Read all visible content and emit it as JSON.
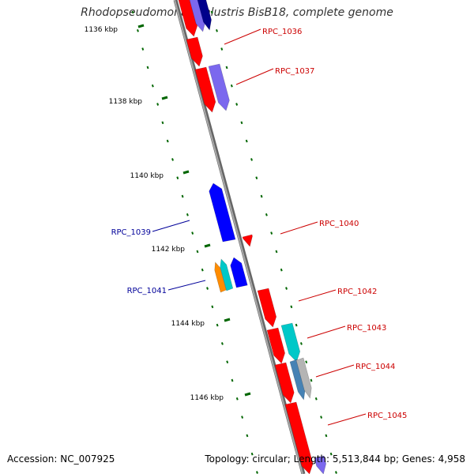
{
  "header": {
    "title": "Rhodopseudomonas palustris BisB18, complete genome"
  },
  "footer": {
    "accession": "Accession: NC_007925",
    "summary": "Topology: circular; Length: 5,513,844 bp; Genes: 4,958"
  },
  "colors": {
    "backbone": "#808080",
    "forward_label": "#cc0000",
    "reverse_label": "#000099",
    "tick": "#006600",
    "forward_gene": "#ff0000",
    "reverse_gene": "#0000ff",
    "purple_gene": "#7b68ee",
    "cyan_gene": "#00c8c8",
    "orange_gene": "#ff8c00",
    "gray_gene": "#b4b4b4",
    "steel_gene": "#4682b4"
  },
  "scale_labels": [
    "1136 kbp",
    "1138 kbp",
    "1140 kbp",
    "1142 kbp",
    "1144 kbp",
    "1146 kbp"
  ],
  "gene_labels": [
    {
      "text": "RPC_1036",
      "strand": "forward"
    },
    {
      "text": "RPC_1037",
      "strand": "forward"
    },
    {
      "text": "RPC_1039",
      "strand": "reverse"
    },
    {
      "text": "RPC_1040",
      "strand": "forward"
    },
    {
      "text": "RPC_1041",
      "strand": "reverse"
    },
    {
      "text": "RPC_1042",
      "strand": "forward"
    },
    {
      "text": "RPC_1043",
      "strand": "forward"
    },
    {
      "text": "RPC_1044",
      "strand": "forward"
    },
    {
      "text": "RPC_1045",
      "strand": "forward"
    }
  ]
}
